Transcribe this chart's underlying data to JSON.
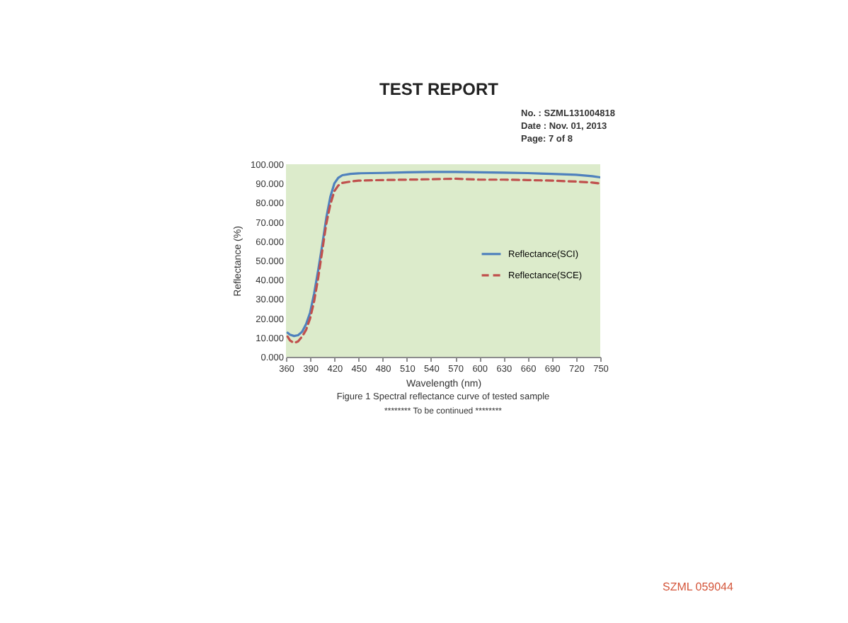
{
  "chart_data": {
    "type": "line",
    "title": "Figure 1 Spectral reflectance curve of tested sample",
    "xlabel": "Wavelength (nm)",
    "ylabel": "Reflectance (%)",
    "annotations": [
      "TEST REPORT",
      "No.  :  SZML131004818",
      "Date :  Nov. 01, 2013",
      "Page:  7 of 8",
      "******** To be continued ********",
      "SZML  059044"
    ],
    "x": [
      362,
      365,
      370,
      375,
      380,
      385,
      390,
      395,
      400,
      405,
      410,
      415,
      420,
      425,
      430,
      440,
      450,
      480,
      510,
      540,
      570,
      600,
      630,
      660,
      690,
      720,
      740,
      750
    ],
    "series": [
      {
        "name": "Reflectance(SCI)",
        "color": "#4f81bd",
        "line_style": "solid",
        "values": [
          12.5,
          11.5,
          10.8,
          11.2,
          13,
          17,
          23,
          33,
          45,
          58,
          72,
          83,
          90,
          93,
          94.3,
          95,
          95.3,
          95.5,
          95.8,
          96,
          96,
          95.8,
          95.6,
          95.4,
          95,
          94.5,
          93.8,
          93.2
        ]
      },
      {
        "name": "Reflectance(SCE)",
        "color": "#c0504d",
        "line_style": "dashed",
        "values": [
          10.5,
          8.5,
          7.2,
          8,
          10.5,
          14,
          20,
          29,
          41,
          55,
          69,
          79,
          86,
          89,
          90.3,
          91,
          91.5,
          91.8,
          92,
          92.2,
          92.5,
          92,
          92,
          91.8,
          91.5,
          91,
          90.5,
          90
        ]
      }
    ],
    "xlim": [
      360,
      750
    ],
    "xticks": [
      360,
      390,
      420,
      450,
      480,
      510,
      540,
      570,
      600,
      630,
      660,
      690,
      720,
      750
    ],
    "ylim": [
      0,
      100
    ],
    "yticks": [
      {
        "value": 0,
        "label": "0.000"
      },
      {
        "value": 10,
        "label": "10.000"
      },
      {
        "value": 20,
        "label": "20.000"
      },
      {
        "value": 30,
        "label": "30.000"
      },
      {
        "value": 40,
        "label": "40.000"
      },
      {
        "value": 50,
        "label": "50.000"
      },
      {
        "value": 60,
        "label": "60.000"
      },
      {
        "value": 70,
        "label": "70.000"
      },
      {
        "value": 80,
        "label": "80.000"
      },
      {
        "value": 90,
        "label": "90.000"
      },
      {
        "value": 100,
        "label": "100.000"
      }
    ],
    "grid": false,
    "legend": "right"
  }
}
